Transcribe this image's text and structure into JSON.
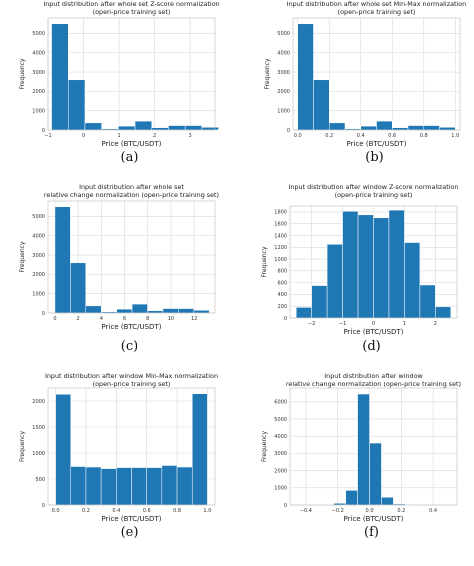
{
  "colors": {
    "bar": "#1f77b4",
    "grid": "#d9d9d9",
    "frame": "#bdbdbd"
  },
  "chart_data": [
    {
      "type": "bar",
      "panel": "(a)",
      "title": [
        "Input distribution after whole set Z-score normalization",
        "(open-price training set)"
      ],
      "xlabel": "Price (BTC/USDT)",
      "ylabel": "Frequency",
      "xlim": [
        -1,
        3.7
      ],
      "ylim": [
        0,
        5800
      ],
      "xticks": [
        -1,
        0,
        1,
        2,
        3
      ],
      "xticklabels": [
        "−1",
        "0",
        "1",
        "2",
        "3"
      ],
      "yticks": [
        0,
        1000,
        2000,
        3000,
        4000,
        5000
      ],
      "yticklabels": [
        "0",
        "1000",
        "2000",
        "3000",
        "4000",
        "5000"
      ],
      "bins": [
        [
          -0.9,
          -0.43,
          5500
        ],
        [
          -0.43,
          0.04,
          2600
        ],
        [
          0.04,
          0.51,
          370
        ],
        [
          0.51,
          0.98,
          60
        ],
        [
          0.98,
          1.45,
          200
        ],
        [
          1.45,
          1.92,
          460
        ],
        [
          1.92,
          2.39,
          120
        ],
        [
          2.39,
          2.86,
          230
        ],
        [
          2.86,
          3.33,
          230
        ],
        [
          3.33,
          3.8,
          140
        ]
      ]
    },
    {
      "type": "bar",
      "panel": "(b)",
      "title": [
        "Input distribution after whole set Min-Max normalization",
        "(open-price training set)"
      ],
      "xlabel": "Price (BTC/USDT)",
      "ylabel": "Frequency",
      "xlim": [
        -0.03,
        1.03
      ],
      "ylim": [
        0,
        5800
      ],
      "xticks": [
        0,
        0.2,
        0.4,
        0.6,
        0.8,
        1.0
      ],
      "xticklabels": [
        "0.0",
        "0.2",
        "0.4",
        "0.6",
        "0.8",
        "1.0"
      ],
      "yticks": [
        0,
        1000,
        2000,
        3000,
        4000,
        5000
      ],
      "yticklabels": [
        "0",
        "1000",
        "2000",
        "3000",
        "4000",
        "5000"
      ],
      "bins": [
        [
          0,
          0.1,
          5500
        ],
        [
          0.1,
          0.2,
          2600
        ],
        [
          0.2,
          0.3,
          370
        ],
        [
          0.3,
          0.4,
          60
        ],
        [
          0.4,
          0.5,
          200
        ],
        [
          0.5,
          0.6,
          460
        ],
        [
          0.6,
          0.7,
          120
        ],
        [
          0.7,
          0.8,
          230
        ],
        [
          0.8,
          0.9,
          230
        ],
        [
          0.9,
          1.0,
          140
        ]
      ]
    },
    {
      "type": "bar",
      "panel": "(c)",
      "title": [
        "Input distribution after whole set",
        "relative change normalization (open-price training set)"
      ],
      "xlabel": "Price (BTC/USDT)",
      "ylabel": "Frequency",
      "xlim": [
        -0.6,
        13.8
      ],
      "ylim": [
        0,
        5800
      ],
      "xticks": [
        0,
        2,
        4,
        6,
        8,
        10,
        12
      ],
      "xticklabels": [
        "0",
        "2",
        "4",
        "6",
        "8",
        "10",
        "12"
      ],
      "yticks": [
        0,
        1000,
        2000,
        3000,
        4000,
        5000
      ],
      "yticklabels": [
        "0",
        "1000",
        "2000",
        "3000",
        "4000",
        "5000"
      ],
      "bins": [
        [
          0,
          1.33,
          5500
        ],
        [
          1.33,
          2.66,
          2600
        ],
        [
          2.66,
          3.99,
          370
        ],
        [
          3.99,
          5.32,
          60
        ],
        [
          5.32,
          6.65,
          200
        ],
        [
          6.65,
          7.98,
          460
        ],
        [
          7.98,
          9.31,
          120
        ],
        [
          9.31,
          10.64,
          230
        ],
        [
          10.64,
          11.97,
          230
        ],
        [
          11.97,
          13.3,
          140
        ]
      ]
    },
    {
      "type": "bar",
      "panel": "(d)",
      "title": [
        "Input distribution after window Z-score normalization",
        "(open-price training set)"
      ],
      "xlabel": "Price (BTC/USDT)",
      "ylabel": "Frequency",
      "xlim": [
        -2.7,
        2.7
      ],
      "ylim": [
        0,
        1900
      ],
      "xticks": [
        -2,
        -1,
        0,
        1,
        2
      ],
      "xticklabels": [
        "−2",
        "−1",
        "0",
        "1",
        "2"
      ],
      "yticks": [
        0,
        200,
        400,
        600,
        800,
        1000,
        1200,
        1400,
        1600,
        1800
      ],
      "yticklabels": [
        "0",
        "200",
        "400",
        "600",
        "800",
        "1000",
        "1200",
        "1400",
        "1600",
        "1800"
      ],
      "bins": [
        [
          -2.5,
          -2.0,
          180
        ],
        [
          -2.0,
          -1.5,
          550
        ],
        [
          -1.5,
          -1.0,
          1250
        ],
        [
          -1.0,
          -0.5,
          1810
        ],
        [
          -0.5,
          0.0,
          1750
        ],
        [
          0.0,
          0.5,
          1700
        ],
        [
          0.5,
          1.0,
          1830
        ],
        [
          1.0,
          1.5,
          1280
        ],
        [
          1.5,
          2.0,
          560
        ],
        [
          2.0,
          2.5,
          190
        ]
      ]
    },
    {
      "type": "bar",
      "panel": "(e)",
      "title": [
        "Input distribution after window Min-Max normalization",
        "(open-price training set)"
      ],
      "xlabel": "Price (BTC/USDT)",
      "ylabel": "Frequency",
      "xlim": [
        -0.05,
        1.05
      ],
      "ylim": [
        0,
        2250
      ],
      "xticks": [
        0,
        0.2,
        0.4,
        0.6,
        0.8,
        1.0
      ],
      "xticklabels": [
        "0.0",
        "0.2",
        "0.4",
        "0.6",
        "0.8",
        "1.0"
      ],
      "yticks": [
        0,
        500,
        1000,
        1500,
        2000
      ],
      "yticklabels": [
        "0",
        "500",
        "1000",
        "1500",
        "2000"
      ],
      "bins": [
        [
          0,
          0.1,
          2130
        ],
        [
          0.1,
          0.2,
          740
        ],
        [
          0.2,
          0.3,
          730
        ],
        [
          0.3,
          0.4,
          700
        ],
        [
          0.4,
          0.5,
          720
        ],
        [
          0.5,
          0.6,
          720
        ],
        [
          0.6,
          0.7,
          720
        ],
        [
          0.7,
          0.8,
          760
        ],
        [
          0.8,
          0.9,
          730
        ],
        [
          0.9,
          1.0,
          2140
        ]
      ]
    },
    {
      "type": "bar",
      "panel": "(f)",
      "title": [
        "Input distribution after window",
        "relative change normalization (open-price training set)"
      ],
      "xlabel": "Price (BTC/USDT)",
      "ylabel": "Frequency",
      "xlim": [
        -0.5,
        0.55
      ],
      "ylim": [
        0,
        6800
      ],
      "xticks": [
        -0.4,
        -0.2,
        0.0,
        0.2,
        0.4
      ],
      "xticklabels": [
        "−0.4",
        "−0.2",
        "0.0",
        "0.2",
        "0.4"
      ],
      "yticks": [
        0,
        1000,
        2000,
        3000,
        4000,
        5000,
        6000
      ],
      "yticklabels": [
        "0",
        "1000",
        "2000",
        "3000",
        "4000",
        "5000",
        "6000"
      ],
      "bins": [
        [
          -0.3,
          -0.225,
          10
        ],
        [
          -0.225,
          -0.15,
          100
        ],
        [
          -0.15,
          -0.075,
          850
        ],
        [
          -0.075,
          0.0,
          6450
        ],
        [
          0.0,
          0.075,
          3600
        ],
        [
          0.075,
          0.15,
          450
        ],
        [
          0.15,
          0.225,
          60
        ],
        [
          0.225,
          0.3,
          10
        ]
      ]
    }
  ]
}
